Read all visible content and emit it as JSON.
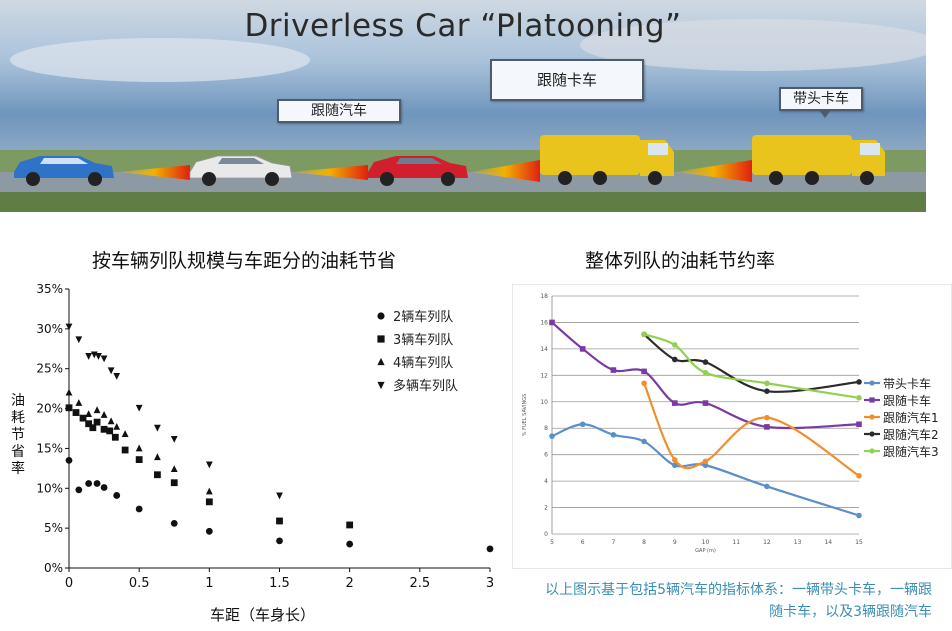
{
  "banner": {
    "title": "Driverless Car “Platooning”",
    "callouts": {
      "lead_truck": "带头卡车",
      "follow_truck": "跟随卡车",
      "follow_car": "跟随汽车"
    },
    "colors": {
      "sky_top": "#3b6fa8",
      "sky_mid": "#9cb8d6",
      "road": "#8d9aa3",
      "grass": "#5f7d45",
      "car1": "#2e73c8",
      "car2": "#e6e6e6",
      "car3": "#d11f2e",
      "truck": "#e8c41c"
    }
  },
  "left_chart": {
    "title": "按车辆列队规模与车距分的油耗节省",
    "ylabel": "油耗节省率",
    "xlabel": "车距（车身长）"
  },
  "right_chart": {
    "title": "整体列队的油耗节约率",
    "xlabel": "GAP (m)",
    "ylabel": "% FUEL SAVINGS"
  },
  "note": "以上图示基于包括5辆汽车的指标体系：一辆带头卡车，一辆跟随卡车，以及3辆跟随汽车",
  "chart_data": [
    {
      "type": "scatter",
      "title": "按车辆列队规模与车距分的油耗节省",
      "xlabel": "车距（车身长）",
      "ylabel": "油耗节省率",
      "xlim": [
        0,
        3
      ],
      "ylim": [
        0,
        35
      ],
      "x_ticks": [
        "0",
        "0.5",
        "1",
        "1.5",
        "2",
        "2.5",
        "3"
      ],
      "y_ticks": [
        "0%",
        "5%",
        "10%",
        "15%",
        "20%",
        "25%",
        "30%",
        "35%"
      ],
      "legend_position": "top-right",
      "series": [
        {
          "name": "2辆车列队",
          "marker": "circle",
          "points": [
            [
              0,
              13.5
            ],
            [
              0.07,
              9.8
            ],
            [
              0.14,
              10.6
            ],
            [
              0.2,
              10.6
            ],
            [
              0.25,
              10.1
            ],
            [
              0.34,
              9.1
            ],
            [
              0.5,
              7.4
            ],
            [
              0.75,
              5.6
            ],
            [
              1.0,
              4.6
            ],
            [
              1.5,
              3.4
            ],
            [
              2.0,
              3.0
            ],
            [
              3.0,
              2.4
            ]
          ]
        },
        {
          "name": "3辆车列队",
          "marker": "square",
          "points": [
            [
              0,
              20.1
            ],
            [
              0.05,
              19.5
            ],
            [
              0.1,
              18.8
            ],
            [
              0.14,
              18.1
            ],
            [
              0.17,
              17.6
            ],
            [
              0.2,
              18.3
            ],
            [
              0.25,
              17.4
            ],
            [
              0.29,
              17.2
            ],
            [
              0.33,
              16.4
            ],
            [
              0.4,
              14.8
            ],
            [
              0.5,
              13.6
            ],
            [
              0.63,
              11.7
            ],
            [
              0.75,
              10.7
            ],
            [
              1.0,
              8.3
            ],
            [
              1.5,
              5.9
            ],
            [
              2.0,
              5.4
            ]
          ]
        },
        {
          "name": "4辆车列队",
          "marker": "triangle-up",
          "points": [
            [
              0,
              22.0
            ],
            [
              0.07,
              20.7
            ],
            [
              0.14,
              19.3
            ],
            [
              0.2,
              19.8
            ],
            [
              0.25,
              19.2
            ],
            [
              0.3,
              18.4
            ],
            [
              0.34,
              17.7
            ],
            [
              0.4,
              16.8
            ],
            [
              0.5,
              15.0
            ],
            [
              0.63,
              13.9
            ],
            [
              0.75,
              12.4
            ],
            [
              1.0,
              9.6
            ]
          ]
        },
        {
          "name": "多辆车列队",
          "marker": "triangle-down",
          "points": [
            [
              0,
              30.3
            ],
            [
              0.07,
              28.7
            ],
            [
              0.14,
              26.6
            ],
            [
              0.18,
              26.8
            ],
            [
              0.21,
              26.6
            ],
            [
              0.25,
              26.3
            ],
            [
              0.3,
              24.8
            ],
            [
              0.34,
              24.1
            ],
            [
              0.5,
              20.1
            ],
            [
              0.63,
              17.6
            ],
            [
              0.75,
              16.2
            ],
            [
              1.0,
              13.0
            ],
            [
              1.5,
              9.1
            ]
          ]
        }
      ]
    },
    {
      "type": "line",
      "title": "整体列队的油耗节约率",
      "xlabel": "GAP (m)",
      "ylabel": "% FUEL SAVINGS",
      "xlim": [
        5,
        15
      ],
      "ylim": [
        0,
        18
      ],
      "x_ticks": [
        5,
        6,
        7,
        8,
        9,
        10,
        11,
        12,
        13,
        14,
        15
      ],
      "y_ticks": [
        0,
        2,
        4,
        6,
        8,
        10,
        12,
        14,
        16,
        18
      ],
      "legend_position": "right",
      "series": [
        {
          "name": "带头卡车",
          "color": "#5b8fc9",
          "marker": "circle",
          "points": [
            [
              5,
              7.4
            ],
            [
              6,
              8.3
            ],
            [
              7,
              7.5
            ],
            [
              8,
              7.0
            ],
            [
              9,
              5.2
            ],
            [
              10,
              5.2
            ],
            [
              12,
              3.6
            ],
            [
              15,
              1.4
            ]
          ]
        },
        {
          "name": "跟随卡车",
          "color": "#7a3aa3",
          "marker": "square",
          "points": [
            [
              5,
              16.0
            ],
            [
              6,
              14.0
            ],
            [
              7,
              12.4
            ],
            [
              8,
              12.3
            ],
            [
              9,
              9.9
            ],
            [
              10,
              9.9
            ],
            [
              12,
              8.1
            ],
            [
              15,
              8.3
            ]
          ]
        },
        {
          "name": "跟随汽车1",
          "color": "#f28e2b",
          "marker": "circle",
          "points": [
            [
              8,
              11.4
            ],
            [
              9,
              5.6
            ],
            [
              10,
              5.5
            ],
            [
              12,
              8.8
            ],
            [
              15,
              4.4
            ]
          ]
        },
        {
          "name": "跟随汽车2",
          "color": "#2b2b2b",
          "marker": "circle",
          "points": [
            [
              8,
              15.1
            ],
            [
              9,
              13.2
            ],
            [
              10,
              13.0
            ],
            [
              12,
              10.8
            ],
            [
              15,
              11.5
            ]
          ]
        },
        {
          "name": "跟随汽车3",
          "color": "#92d050",
          "marker": "circle",
          "points": [
            [
              8,
              15.1
            ],
            [
              9,
              14.3
            ],
            [
              10,
              12.2
            ],
            [
              12,
              11.4
            ],
            [
              15,
              10.3
            ]
          ]
        }
      ]
    }
  ]
}
